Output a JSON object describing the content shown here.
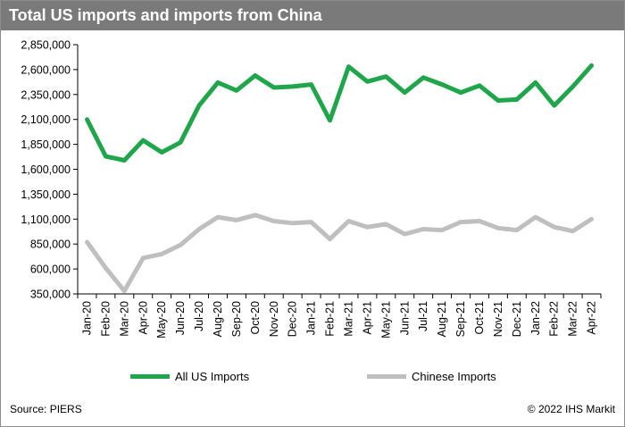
{
  "title": "Total US imports and imports from China",
  "source": "Source: PIERS",
  "copyright": "© 2022 IHS Markit",
  "colors": {
    "title_bg": "#7a7a7a",
    "all_us": "#1fa64a",
    "chinese": "#bfbfbf",
    "axis": "#000000"
  },
  "chart_data": {
    "type": "line",
    "title": "Total US imports and imports from China",
    "xlabel": "",
    "ylabel": "",
    "x": [
      "Jan-20",
      "Feb-20",
      "Mar-20",
      "Apr-20",
      "May-20",
      "Jun-20",
      "Jul-20",
      "Aug-20",
      "Sep-20",
      "Oct-20",
      "Nov-20",
      "Dec-20",
      "Jan-21",
      "Feb-21",
      "Mar-21",
      "Apr-21",
      "May-21",
      "Jun-21",
      "Jul-21",
      "Aug-21",
      "Sep-21",
      "Oct-21",
      "Nov-21",
      "Dec-21",
      "Jan-22",
      "Feb-22",
      "Mar-22",
      "Apr-22"
    ],
    "ylim": [
      350000,
      2850000
    ],
    "yticks": [
      350000,
      600000,
      850000,
      1100000,
      1350000,
      1600000,
      1850000,
      2100000,
      2350000,
      2600000,
      2850000
    ],
    "ytick_labels": [
      "350,000",
      "600,000",
      "850,000",
      "1,100,000",
      "1,350,000",
      "1,600,000",
      "1,850,000",
      "2,100,000",
      "2,350,000",
      "2,600,000",
      "2,850,000"
    ],
    "grid": false,
    "legend_position": "bottom",
    "series": [
      {
        "name": "All US Imports",
        "color": "#1fa64a",
        "values": [
          2100000,
          1730000,
          1690000,
          1890000,
          1770000,
          1870000,
          2240000,
          2470000,
          2390000,
          2540000,
          2420000,
          2430000,
          2450000,
          2090000,
          2630000,
          2480000,
          2530000,
          2370000,
          2520000,
          2450000,
          2370000,
          2440000,
          2290000,
          2300000,
          2470000,
          2240000,
          2430000,
          2640000
        ]
      },
      {
        "name": "Chinese Imports",
        "color": "#bfbfbf",
        "values": [
          870000,
          610000,
          380000,
          710000,
          750000,
          840000,
          1000000,
          1120000,
          1090000,
          1140000,
          1080000,
          1060000,
          1070000,
          900000,
          1080000,
          1020000,
          1050000,
          950000,
          1000000,
          990000,
          1070000,
          1080000,
          1010000,
          990000,
          1120000,
          1020000,
          980000,
          1100000
        ]
      }
    ]
  }
}
